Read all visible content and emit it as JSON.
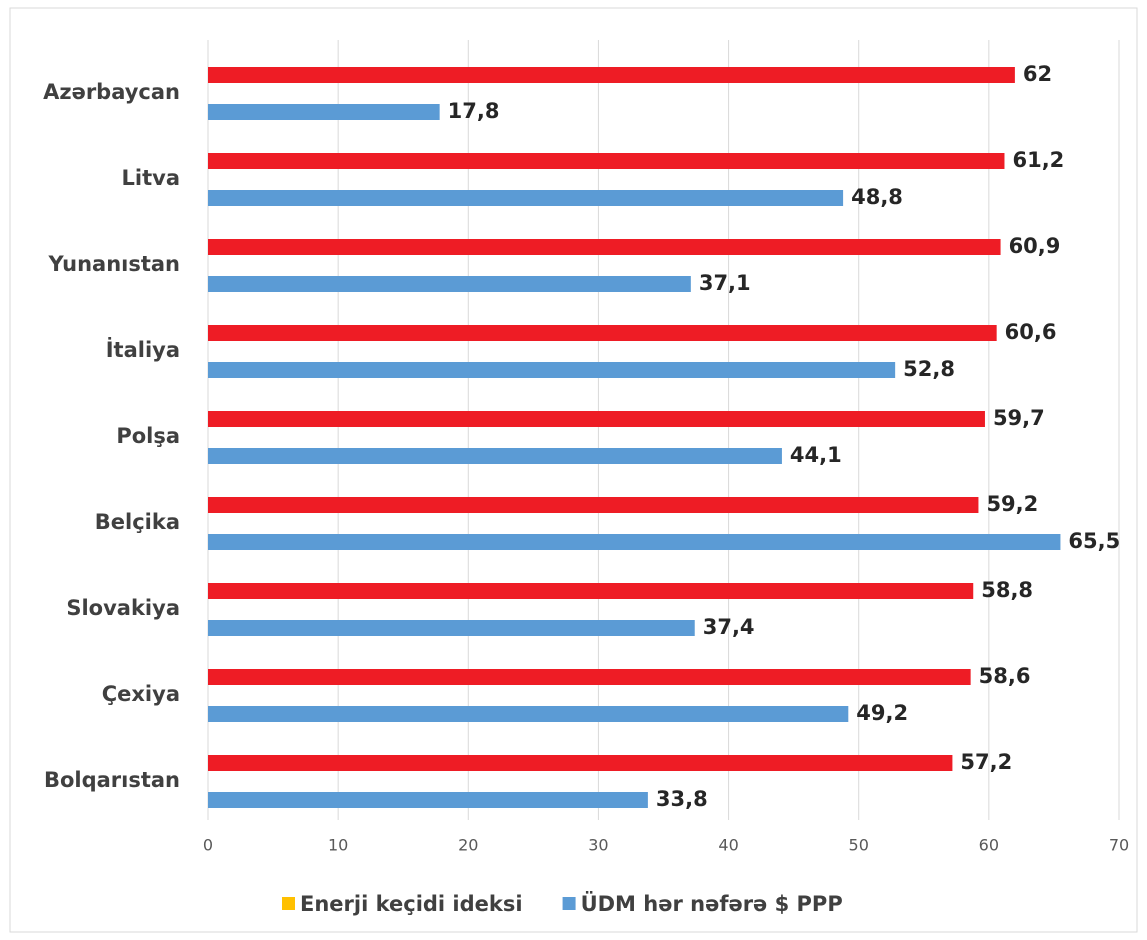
{
  "chart_data": {
    "type": "bar",
    "orientation": "horizontal",
    "categories": [
      "Azərbaycan",
      "Litva",
      "Yunanıstan",
      "İtaliya",
      "Polşa",
      "Belçika",
      "Slovakiya",
      "Çexiya",
      "Bolqarıstan"
    ],
    "series": [
      {
        "name": "Enerji keçidi ideksi",
        "color": "#ee1c25",
        "legend_color": "#ffc000",
        "values": [
          62,
          61.2,
          60.9,
          60.6,
          59.7,
          59.2,
          58.8,
          58.6,
          57.2
        ],
        "value_labels": [
          "62",
          "61,2",
          "60,9",
          "60,6",
          "59,7",
          "59,2",
          "58,8",
          "58,6",
          "57,2"
        ]
      },
      {
        "name": "ÜDM hər nəfərə $ PPP",
        "color": "#5b9bd5",
        "legend_color": "#5b9bd5",
        "values": [
          17.8,
          48.8,
          37.1,
          52.8,
          44.1,
          65.5,
          37.4,
          49.2,
          33.8
        ],
        "value_labels": [
          "17,8",
          "48,8",
          "37,1",
          "52,8",
          "44,1",
          "65,5",
          "37,4",
          "49,2",
          "33,8"
        ]
      }
    ],
    "xlim": [
      0,
      70
    ],
    "xticks": [
      0,
      10,
      20,
      30,
      40,
      50,
      60,
      70
    ],
    "grid": true,
    "legend": "bottom"
  }
}
